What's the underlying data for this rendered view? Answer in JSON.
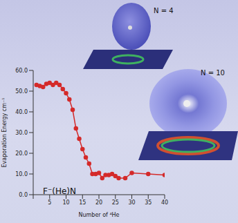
{
  "chart_data": {
    "type": "line",
    "x_label": "Number of ⁴He",
    "y_label": "Evaporation Energy cm⁻¹",
    "annotations": [
      "N = 4",
      "N = 10",
      "F⁻(He)N"
    ],
    "x": [
      1,
      2,
      3,
      4,
      5,
      6,
      7,
      8,
      9,
      10,
      11,
      12,
      13,
      14,
      15,
      16,
      17,
      18,
      19,
      20,
      21,
      22,
      23,
      24,
      25,
      26,
      28,
      30,
      35,
      40
    ],
    "series": [
      {
        "name": "F⁻(He)N",
        "color": "#d42a2a",
        "marker": "circle",
        "values": [
          53,
          52.5,
          52,
          53.5,
          54,
          53,
          54,
          53,
          51,
          49,
          46,
          41,
          32,
          27,
          22,
          18,
          15,
          10,
          10,
          10.5,
          8,
          9.5,
          9.5,
          10,
          9,
          8,
          8,
          10.5,
          10,
          9.5
        ]
      }
    ],
    "xlim": [
      0,
      40
    ],
    "xticks": [
      0,
      5,
      10,
      15,
      20,
      25,
      30,
      35,
      40
    ],
    "ylim": [
      0,
      60
    ],
    "yticks": [
      {
        "value": 0,
        "label": "0.0"
      },
      {
        "value": 10,
        "label": "10.0"
      },
      {
        "value": 20,
        "label": "20.0"
      },
      {
        "value": 30,
        "label": "30.0"
      },
      {
        "value": 40,
        "label": "40.0"
      },
      {
        "value": 50,
        "label": "50.0"
      },
      {
        "value": 60,
        "label": "60.0"
      }
    ],
    "grid": false
  }
}
